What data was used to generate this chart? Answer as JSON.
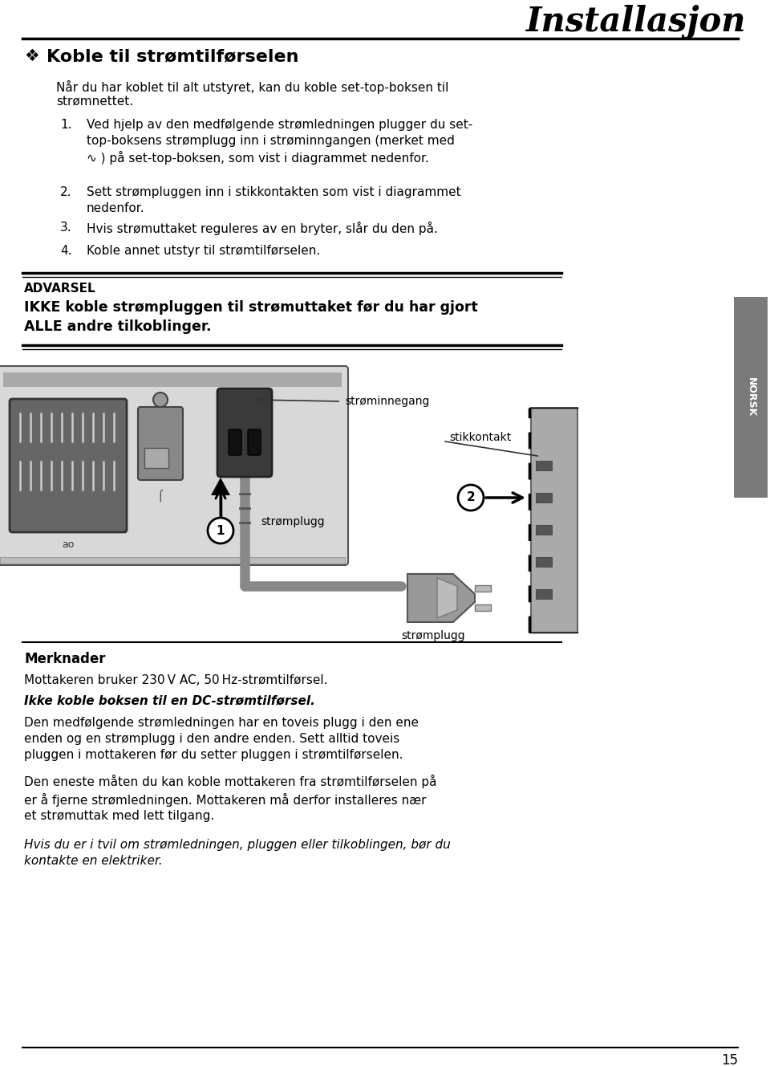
{
  "bg_color": "#ffffff",
  "page_width": 9.6,
  "page_height": 13.28,
  "title": "Installasjon",
  "section_bullet": "❖",
  "section_title": "Koble til strømtilførselen",
  "intro_text": "Når du har koblet til alt utstyret, kan du koble set-top-boksen til\nstrømnettet.",
  "item1_num": "1.",
  "item1_text": "Ved hjelp av den medfølgende strømledningen plugger du set-\ntop-boksens strømplugg inn i strøminngangen (merket med\n∿ ) på set-top-boksen, som vist i diagrammet nedenfor.",
  "item2_num": "2.",
  "item2_text": "Sett strømpluggen inn i stikkontakten som vist i diagrammet\nnedenfor.",
  "item3_num": "3.",
  "item3_text": "Hvis strømuttaket reguleres av en bryter, slår du den på.",
  "item4_num": "4.",
  "item4_text": "Koble annet utstyr til strømtilførselen.",
  "advarsel_label": "ADVARSEL",
  "advarsel_line1": "IKKE koble strømpluggen til strømuttaket før du har gjort",
  "advarsel_line2": "ALLE andre tilkoblinger.",
  "diag_strominngang": "strøminnegang",
  "diag_stikkontakt": "stikkontakt",
  "diag_stromplugg1": "strømplugg",
  "diag_stromplugg2": "strømplugg",
  "merknader_title": "Merknader",
  "merk1": "Mottakeren bruker 230 V AC, 50 Hz-strømtilførsel.",
  "merk2": "Ikke koble boksen til en DC-strømtilførsel.",
  "merk3": "Den medfølgende strømledningen har en toveis plugg i den ene\nenden og en strømplugg i den andre enden. Sett alltid toveis\npluggen i mottakeren før du setter pluggen i strømtilførselen.",
  "merk4": "Den eneste måten du kan koble mottakeren fra strømtilførselen på\ner å fjerne strømledningen. Mottakeren må derfor installeres nær\net strømuttak med lett tilgang.",
  "merk5": "Hvis du er i tvil om strømledningen, pluggen eller tilkoblingen, bør du\nkontakte en elektriker.",
  "page_number": "15",
  "sidebar_text": "NORSK",
  "sidebar_color": "#7a7a7a",
  "line_color": "#000000",
  "text_color": "#000000"
}
